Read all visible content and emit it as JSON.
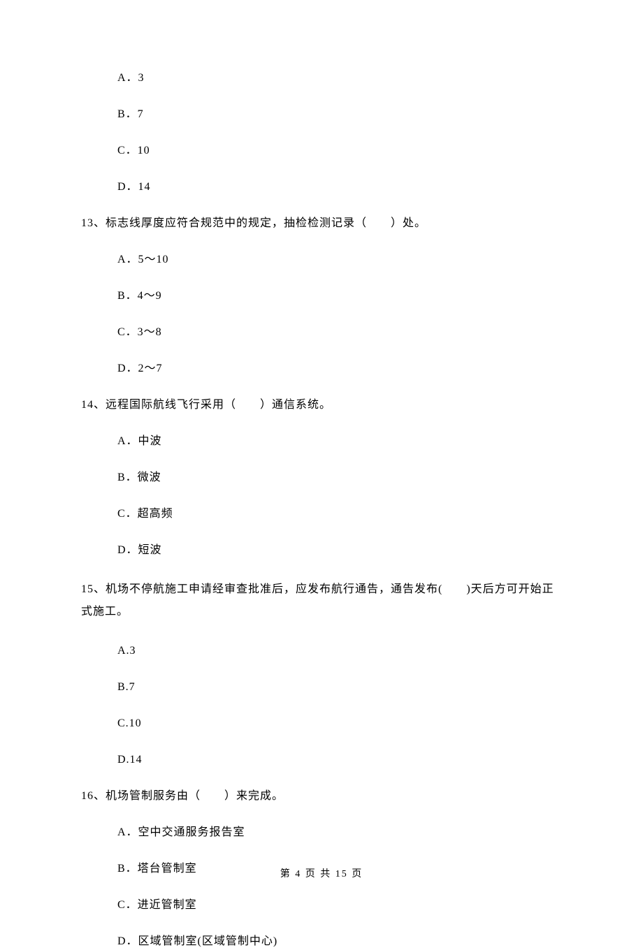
{
  "questions": {
    "q12": {
      "options": {
        "a": "A．3",
        "b": "B．7",
        "c": "C．10",
        "d": "D．14"
      }
    },
    "q13": {
      "text": "13、标志线厚度应符合规范中的规定，抽检检测记录（　　）处。",
      "options": {
        "a": "A．5～10",
        "b": "B．4～9",
        "c": "C．3～8",
        "d": "D．2～7"
      }
    },
    "q14": {
      "text": "14、远程国际航线飞行采用（　　）通信系统。",
      "options": {
        "a": "A．中波",
        "b": "B．微波",
        "c": "C．超高频",
        "d": "D．短波"
      }
    },
    "q15": {
      "text": "15、机场不停航施工申请经审查批准后，应发布航行通告，通告发布(　　)天后方可开始正式施工。",
      "options": {
        "a": "A.3",
        "b": "B.7",
        "c": "C.10",
        "d": "D.14"
      }
    },
    "q16": {
      "text": "16、机场管制服务由（　　）来完成。",
      "options": {
        "a": "A．空中交通服务报告室",
        "b": "B．塔台管制室",
        "c": "C．进近管制室",
        "d": "D．区域管制室(区域管制中心)"
      }
    }
  },
  "footer": "第 4 页 共 15 页"
}
